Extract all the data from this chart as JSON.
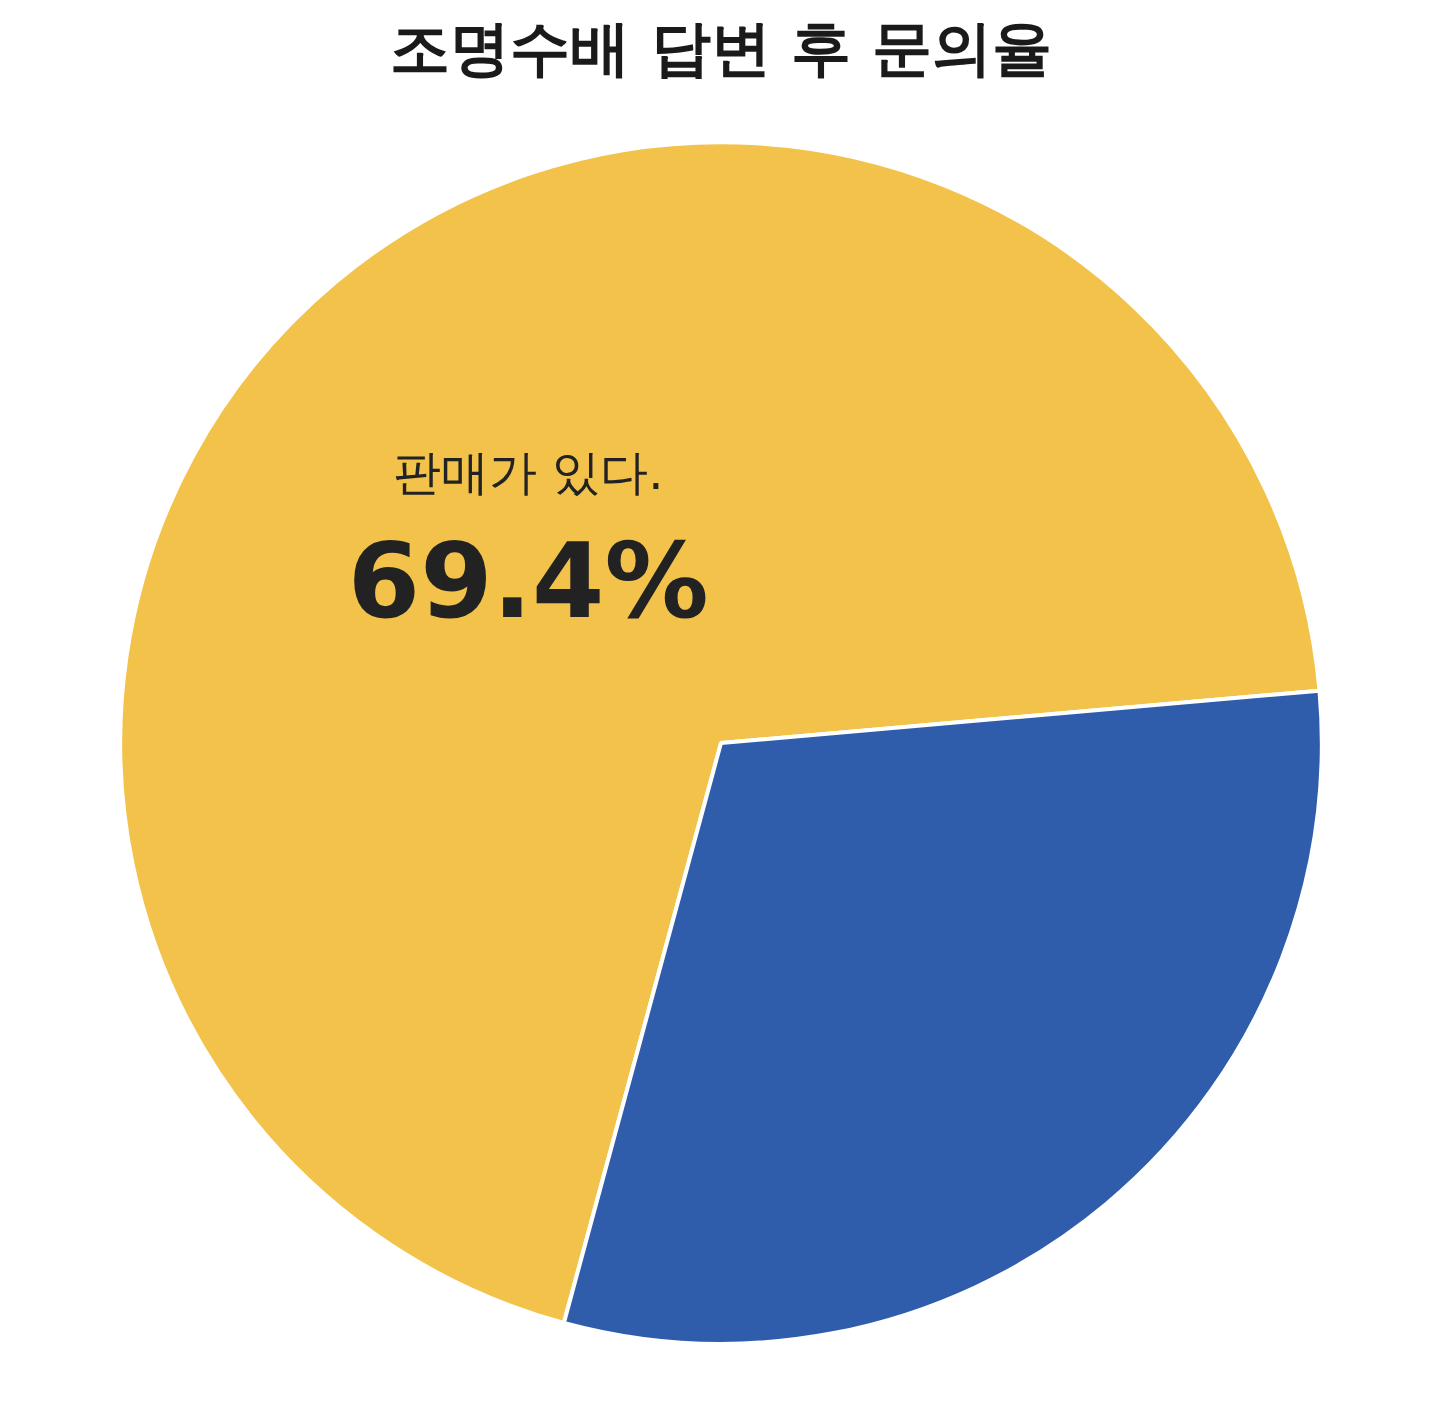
{
  "chart_data": {
    "type": "pie",
    "title": "조명수배 답변 후 문의율",
    "categories": [
      "판매가 있다.",
      null
    ],
    "values": [
      69.4,
      30.6
    ],
    "colors": [
      "#f2c24a",
      "#2f5dab"
    ],
    "value_labels": [
      "69.4%",
      null
    ]
  }
}
